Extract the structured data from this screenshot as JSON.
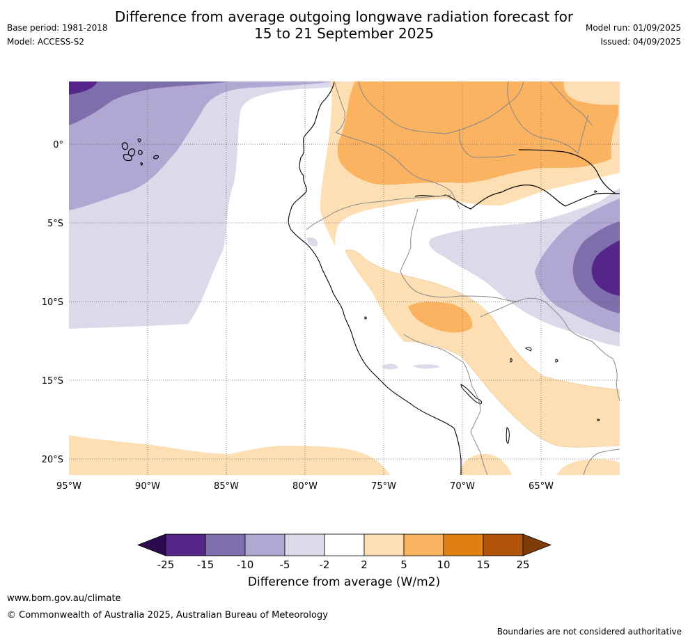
{
  "header": {
    "title_line1": "Difference from average outgoing longwave radiation forecast for",
    "title_line2": "15 to 21 September 2025",
    "base_period": "Base period: 1981-2018",
    "model": "Model: ACCESS-S2",
    "model_run": "Model run: 01/09/2025",
    "issued": "Issued: 04/09/2025"
  },
  "map": {
    "lat_labels": [
      "0°",
      "5°S",
      "10°S",
      "15°S",
      "20°S"
    ],
    "lon_labels": [
      "95°W",
      "90°W",
      "85°W",
      "80°W",
      "75°W",
      "70°W",
      "65°W"
    ],
    "grid": true
  },
  "colorbar": {
    "ticks": [
      "-25",
      "-15",
      "-10",
      "-5",
      "-2",
      "2",
      "5",
      "10",
      "15",
      "25"
    ],
    "colors": [
      "#2d0a4e",
      "#56258a",
      "#7e6eab",
      "#b0a8d2",
      "#dadaeb",
      "#ffffff",
      "#fddfb3",
      "#fbb361",
      "#e08013",
      "#b05409",
      "#7f3b08"
    ],
    "label": "Difference from average (W/m2)"
  },
  "footer": {
    "website": "www.bom.gov.au/climate",
    "copyright": "© Commonwealth of Australia 2025, Australian Bureau of Meteorology",
    "disclaimer": "Boundaries are not considered authoritative"
  }
}
